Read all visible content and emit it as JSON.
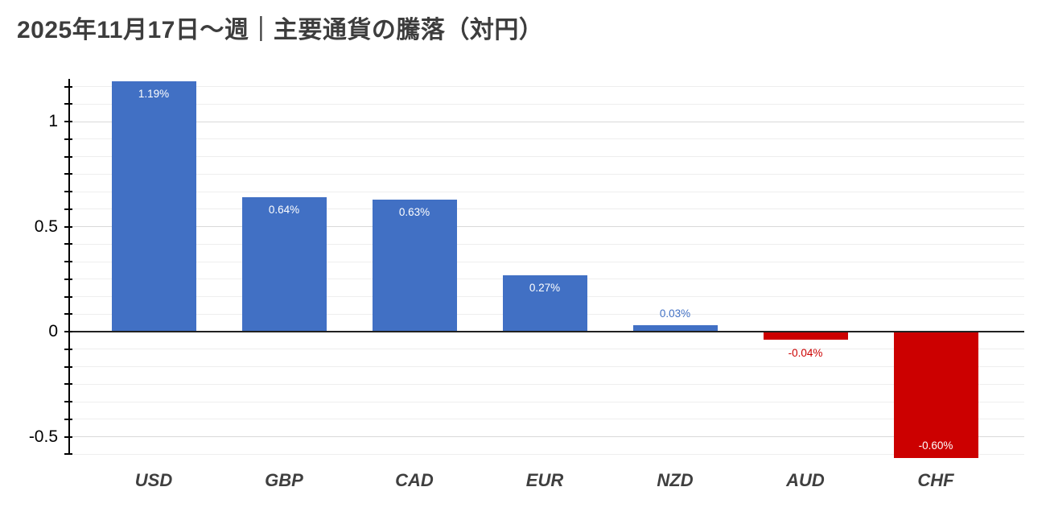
{
  "header": {
    "title": "2025年11月17日～週｜主要通貨の騰落（対円）"
  },
  "chart_data": {
    "type": "bar",
    "title": "2025年11月17日～週｜主要通貨の騰落（対円）",
    "categories": [
      "USD",
      "GBP",
      "CAD",
      "EUR",
      "NZD",
      "AUD",
      "CHF"
    ],
    "values": [
      1.19,
      0.64,
      0.63,
      0.27,
      0.03,
      -0.04,
      -0.6
    ],
    "value_labels": [
      "1.19%",
      "0.64%",
      "0.63%",
      "0.27%",
      "0.03%",
      "-0.04%",
      "-0.60%"
    ],
    "label_placements": [
      "inside-top",
      "inside-top",
      "inside-top",
      "inside-top",
      "above",
      "below",
      "inside-bottom"
    ],
    "unit": "%",
    "xlabel": "",
    "ylabel": "",
    "ylim": [
      -0.605,
      1.203
    ],
    "y_major_ticks": [
      {
        "value": 1,
        "label": "1"
      },
      {
        "value": 0.5,
        "label": "0.5"
      },
      {
        "value": 0,
        "label": "0"
      },
      {
        "value": -0.5,
        "label": "-0.5"
      }
    ],
    "minor_grid_step": 0.08333,
    "grid": "on",
    "legend": "none",
    "colors": {
      "positive_bar": "#4170C4",
      "negative_bar": "#CC0000",
      "inside_label": "#FFFFFF",
      "positive_label_outside": "#4170C4",
      "negative_label_outside": "#CC0000",
      "title_text": "#3D3D3D",
      "category_text": "#3F3F3F",
      "axis_text": "#000000",
      "grid_minor": "#EEEEEE",
      "grid_major": "#D9D9D9",
      "zero_line": "#212121",
      "axis_line": "#000000",
      "background": "#FFFFFF"
    }
  }
}
